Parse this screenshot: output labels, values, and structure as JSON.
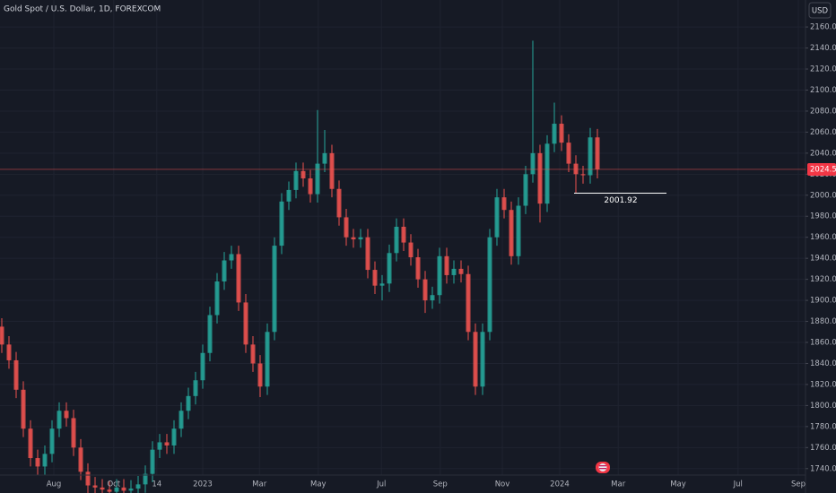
{
  "chart_data": {
    "type": "candlestick",
    "title": "Gold Spot / U.S. Dollar, 1D, FOREXCOM",
    "currency": "USD",
    "up_color": "#26a69a",
    "down_color": "#ef5350",
    "grid": true,
    "categories": [
      null,
      null,
      null,
      null,
      null,
      null,
      null,
      null,
      null,
      null,
      null,
      null,
      null,
      null,
      null,
      null,
      null,
      null,
      null,
      null,
      null,
      null,
      null,
      null,
      null,
      null,
      null,
      null,
      null,
      null,
      null,
      null,
      null,
      null,
      null,
      null,
      null,
      null,
      null,
      null,
      null,
      null,
      null,
      null,
      null,
      null,
      null,
      null,
      null,
      null,
      null,
      null,
      null,
      null,
      null,
      null,
      null,
      null,
      null,
      null,
      null,
      null,
      null,
      null,
      null,
      null,
      null,
      null,
      null,
      null,
      null,
      null,
      null,
      null,
      null,
      null,
      null,
      null,
      null,
      null,
      null,
      null,
      null,
      null
    ],
    "open": [
      1875,
      1858,
      1843,
      1815,
      1778,
      1750,
      1742,
      1754,
      1778,
      1795,
      1788,
      1760,
      1737,
      1724,
      1722,
      1720,
      1718,
      1722,
      1719,
      1721,
      1725,
      1735,
      1758,
      1765,
      1762,
      1778,
      1795,
      1809,
      1824,
      1850,
      1886,
      1918,
      1938,
      1944,
      1898,
      1858,
      1840,
      1818,
      1870,
      1952,
      1994,
      2005,
      2023,
      2016,
      2001,
      2030,
      2040,
      2006,
      1979,
      1960,
      1958,
      1960,
      1929,
      1914,
      1916,
      1945,
      1970,
      1955,
      1941,
      1920,
      1900,
      1905,
      1942,
      1924,
      1930,
      1925,
      1870,
      1818,
      1870,
      1960,
      1998,
      1986,
      1942,
      1990,
      2020,
      2040,
      1992,
      2049,
      2068,
      2050,
      2030,
      2020,
      2019,
      2055
    ],
    "high": [
      1883,
      1866,
      1851,
      1823,
      1786,
      1758,
      1762,
      1786,
      1803,
      1803,
      1796,
      1768,
      1745,
      1732,
      1730,
      1728,
      1730,
      1730,
      1729,
      1733,
      1743,
      1766,
      1773,
      1773,
      1786,
      1803,
      1817,
      1832,
      1858,
      1894,
      1926,
      1946,
      1952,
      1952,
      1906,
      1866,
      1848,
      1878,
      1960,
      2002,
      2013,
      2031,
      2031,
      2024,
      2081,
      2062,
      2048,
      2014,
      1987,
      1968,
      1968,
      1968,
      1937,
      1924,
      1953,
      1978,
      1978,
      1963,
      1949,
      1928,
      1913,
      1950,
      1950,
      1938,
      1938,
      1933,
      1878,
      1878,
      1968,
      2006,
      2006,
      1994,
      1998,
      2028,
      2147,
      2048,
      2057,
      2088,
      2076,
      2058,
      2038,
      2028,
      2064,
      2063
    ],
    "low": [
      1850,
      1835,
      1807,
      1770,
      1742,
      1734,
      1734,
      1746,
      1770,
      1780,
      1752,
      1729,
      1716,
      1714,
      1712,
      1710,
      1710,
      1711,
      1711,
      1713,
      1717,
      1727,
      1750,
      1754,
      1754,
      1770,
      1787,
      1801,
      1816,
      1842,
      1878,
      1910,
      1930,
      1890,
      1850,
      1832,
      1808,
      1810,
      1862,
      1944,
      1986,
      1997,
      2008,
      1993,
      1993,
      2022,
      1998,
      1971,
      1952,
      1950,
      1950,
      1921,
      1906,
      1900,
      1908,
      1937,
      1947,
      1933,
      1912,
      1888,
      1892,
      1897,
      1916,
      1916,
      1917,
      1862,
      1810,
      1810,
      1862,
      1952,
      1978,
      1934,
      1934,
      1982,
      2012,
      1974,
      1984,
      2041,
      2042,
      2022,
      2002,
      2011,
      2011,
      2016
    ],
    "close": [
      1858,
      1843,
      1815,
      1778,
      1750,
      1742,
      1754,
      1778,
      1795,
      1788,
      1760,
      1737,
      1724,
      1722,
      1720,
      1718,
      1722,
      1719,
      1721,
      1725,
      1735,
      1758,
      1765,
      1762,
      1778,
      1795,
      1809,
      1824,
      1850,
      1886,
      1918,
      1938,
      1944,
      1898,
      1858,
      1840,
      1818,
      1870,
      1952,
      1994,
      2005,
      2023,
      2016,
      2001,
      2030,
      2040,
      2006,
      1979,
      1960,
      1958,
      1960,
      1929,
      1914,
      1916,
      1945,
      1970,
      1955,
      1941,
      1920,
      1900,
      1905,
      1942,
      1924,
      1930,
      1925,
      1870,
      1818,
      1870,
      1960,
      1998,
      1986,
      1942,
      1990,
      2020,
      2040,
      1992,
      2049,
      2068,
      2050,
      2030,
      2020,
      2019,
      2055,
      2024.57
    ],
    "xlim": [
      -0.25,
      112
    ],
    "xticks": [
      {
        "value": 7.25,
        "label": "Aug"
      },
      {
        "value": 15.6,
        "label": "Oct"
      },
      {
        "value": 21.6,
        "label": "14"
      },
      {
        "value": 28,
        "label": "2023"
      },
      {
        "value": 35.9,
        "label": "Mar"
      },
      {
        "value": 44.1,
        "label": "May"
      },
      {
        "value": 52.9,
        "label": "Jul"
      },
      {
        "value": 61.1,
        "label": "Sep"
      },
      {
        "value": 69.75,
        "label": "Nov"
      },
      {
        "value": 77.75,
        "label": "2024"
      },
      {
        "value": 85.9,
        "label": "Mar"
      },
      {
        "value": 94.25,
        "label": "May"
      },
      {
        "value": 102.6,
        "label": "Jul"
      },
      {
        "value": 111,
        "label": "Sep"
      }
    ],
    "ylim": [
      1733.84,
      2185.66
    ],
    "yticks": [
      {
        "value": 1740,
        "label": "1740.00"
      },
      {
        "value": 1760,
        "label": "1760.00"
      },
      {
        "value": 1780,
        "label": "1780.00"
      },
      {
        "value": 1800,
        "label": "1800.00"
      },
      {
        "value": 1820,
        "label": "1820.00"
      },
      {
        "value": 1840,
        "label": "1840.00"
      },
      {
        "value": 1860,
        "label": "1860.00"
      },
      {
        "value": 1880,
        "label": "1880.00"
      },
      {
        "value": 1900,
        "label": "1900.00"
      },
      {
        "value": 1920,
        "label": "1920.00"
      },
      {
        "value": 1940,
        "label": "1940.00"
      },
      {
        "value": 1960,
        "label": "1960.00"
      },
      {
        "value": 1980,
        "label": "1980.00"
      },
      {
        "value": 2000,
        "label": "2000.00"
      },
      {
        "value": 2020,
        "label": "2020.00"
      },
      {
        "value": 2040,
        "label": "2040.00"
      },
      {
        "value": 2060,
        "label": "2060.00"
      },
      {
        "value": 2080,
        "label": "2080.00"
      },
      {
        "value": 2100,
        "label": "2100.00"
      },
      {
        "value": 2120,
        "label": "2120.00"
      },
      {
        "value": 2140,
        "label": "2140.00"
      },
      {
        "value": 2160,
        "label": "2160.00"
      }
    ],
    "level": 2001.92
  }
}
